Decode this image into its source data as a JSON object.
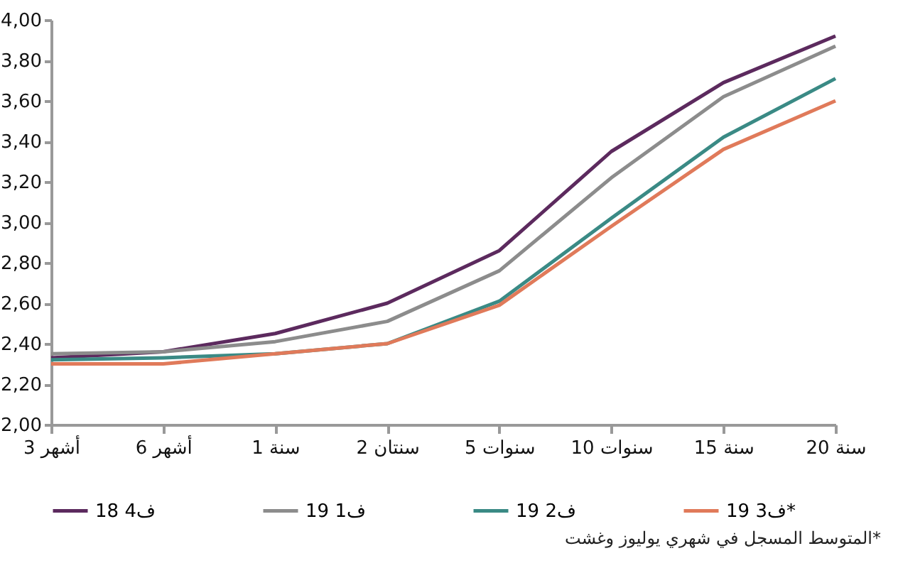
{
  "chart_data": {
    "type": "line",
    "categories": [
      "3 أشهر",
      "6 أشهر",
      "1 سنة",
      "2 سنتان",
      "5 سنوات",
      "10 سنوات",
      "15 سنة",
      "20 سنة"
    ],
    "series": [
      {
        "name": "ف4 18",
        "color": "#5c2a5e",
        "values": [
          2.33,
          2.36,
          2.45,
          2.6,
          2.86,
          3.35,
          3.69,
          3.92
        ]
      },
      {
        "name": "ف1 19",
        "color": "#8c8c8c",
        "values": [
          2.35,
          2.36,
          2.41,
          2.51,
          2.76,
          3.22,
          3.62,
          3.87
        ]
      },
      {
        "name": "ف2 19",
        "color": "#3a8a85",
        "values": [
          2.32,
          2.33,
          2.35,
          2.4,
          2.61,
          3.02,
          3.42,
          3.71
        ]
      },
      {
        "name": "ف3 19*",
        "color": "#e07a5a",
        "values": [
          2.3,
          2.3,
          2.35,
          2.4,
          2.59,
          2.98,
          3.36,
          3.6
        ]
      }
    ],
    "ylim": [
      2,
      4
    ],
    "yticks": [
      {
        "value": 2,
        "label": "2,00"
      },
      {
        "value": 2.2,
        "label": "2,20"
      },
      {
        "value": 2.4,
        "label": "2,40"
      },
      {
        "value": 2.6,
        "label": "2,60"
      },
      {
        "value": 2.8,
        "label": "2,80"
      },
      {
        "value": 3,
        "label": "3,00"
      },
      {
        "value": 3.2,
        "label": "3,20"
      },
      {
        "value": 3.4,
        "label": "3,40"
      },
      {
        "value": 3.6,
        "label": "3,60"
      },
      {
        "value": 3.8,
        "label": "3,80"
      },
      {
        "value": 4,
        "label": "4,00"
      }
    ],
    "grid": false,
    "legend": "bottom",
    "marker": "none",
    "annotations": [
      "*المتوسط المسجل في شهري يوليوز وغشت"
    ]
  }
}
